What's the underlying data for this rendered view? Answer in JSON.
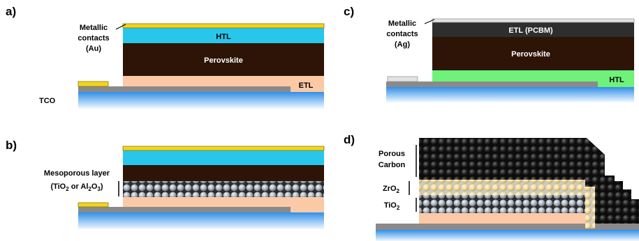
{
  "panels": {
    "a": {
      "label": "a)",
      "metallic_label_line1": "Metallic",
      "metallic_label_line2": "contacts",
      "metallic_label_line3": "(Au)",
      "htl": "HTL",
      "perovskite": "Perovskite",
      "etl": "ETL",
      "tco": "TCO"
    },
    "b": {
      "label": "b)",
      "meso_line1": "Mesoporous layer",
      "meso_line2_prefix": "(TiO",
      "meso_sub1": "2",
      "meso_line2_mid": " or Al",
      "meso_sub2": "2",
      "meso_line2_o": "O",
      "meso_sub3": "3",
      "meso_line2_suffix": ")"
    },
    "c": {
      "label": "c)",
      "metallic_label_line1": "Metallic",
      "metallic_label_line2": "contacts",
      "metallic_label_line3": "(Ag)",
      "etl": "ETL (PCBM)",
      "perovskite": "Perovskite",
      "htl": "HTL"
    },
    "d": {
      "label": "d)",
      "porous_line1": "Porous",
      "porous_line2": "Carbon",
      "zro2": "ZrO",
      "zro2_sub": "2",
      "tio2": "TiO",
      "tio2_sub": "2"
    }
  },
  "colors": {
    "glass_top": "#2f8fe8",
    "glass_bottom": "#eaf4ff",
    "tco": "#8a8a8a",
    "gold": "#f2d51c",
    "htl_cyan": "#28c6ea",
    "perovskite": "#2d1406",
    "etl_peach": "#fcc9a6",
    "silver": "#d8d8d8",
    "etl_dark": "#2e2e2e",
    "htl_green": "#6ef27a",
    "bead_grey": "#a7b0b8",
    "bead_cream": "#f7dfa5",
    "bead_black": "#1b1b1b"
  }
}
